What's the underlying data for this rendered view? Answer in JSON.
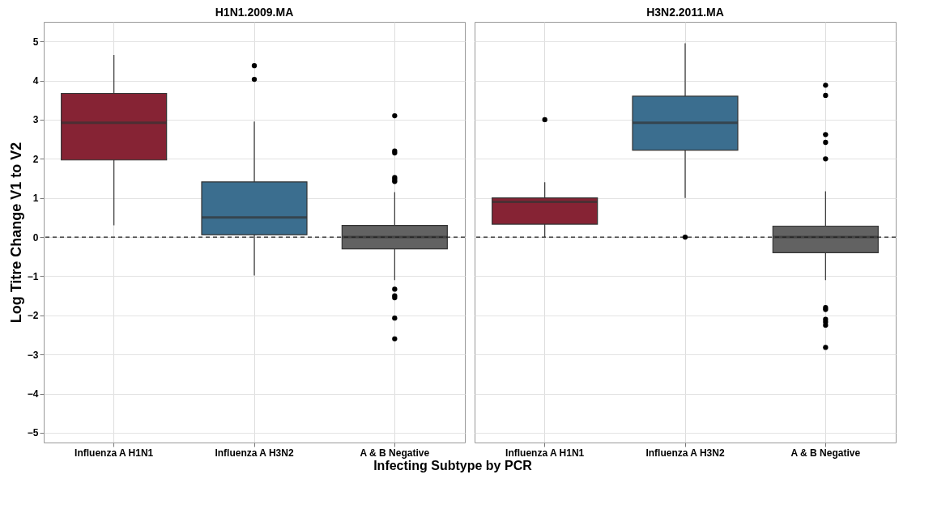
{
  "chart_data": [
    {
      "type": "box",
      "title": "H1N1.2009.MA",
      "xlabel": "Infecting Subtype by PCR",
      "ylabel": "Log Titre Change V1 to V2",
      "categories": [
        "Influenza A H1N1",
        "Influenza A H3N2",
        "A & B Negative"
      ],
      "colors": [
        "#862334",
        "#3b6e8f",
        "#626262"
      ],
      "boxes": [
        {
          "low": 0.3,
          "q1": 1.97,
          "median": 2.92,
          "q3": 3.67,
          "high": 4.65
        },
        {
          "low": -0.98,
          "q1": 0.06,
          "median": 0.5,
          "q3": 1.41,
          "high": 2.95,
          "outliers": [
            4.38,
            4.03
          ]
        },
        {
          "low": -1.1,
          "q1": -0.3,
          "median": 0,
          "q3": 0.3,
          "high": 1.15,
          "outliers": [
            3.1,
            2.2,
            2.15,
            1.52,
            1.47,
            1.42,
            -1.33,
            -1.5,
            -1.55,
            -2.07,
            -2.6
          ]
        }
      ],
      "ylim": [
        -5.25,
        5.5
      ],
      "yticks": [
        -5,
        -4,
        -3,
        -2,
        -1,
        0,
        1,
        2,
        3,
        4,
        5
      ],
      "grid": true,
      "ref_lines": [
        {
          "axis": "y",
          "value": 0,
          "line_style": "dashed"
        }
      ]
    },
    {
      "type": "box",
      "title": "H3N2.2011.MA",
      "categories": [
        "Influenza A H1N1",
        "Influenza A H3N2",
        "A & B Negative"
      ],
      "colors": [
        "#862334",
        "#3b6e8f",
        "#626262"
      ],
      "boxes": [
        {
          "low": 0,
          "q1": 0.33,
          "median": 0.9,
          "q3": 1.0,
          "high": 1.4,
          "outliers": [
            3.0
          ]
        },
        {
          "low": 1.0,
          "q1": 2.22,
          "median": 2.92,
          "q3": 3.6,
          "high": 4.95,
          "outliers": [
            0
          ]
        },
        {
          "low": -1.1,
          "q1": -0.4,
          "median": 0,
          "q3": 0.28,
          "high": 1.17,
          "outliers": [
            3.88,
            3.62,
            2.62,
            2.42,
            2.0,
            -1.8,
            -1.85,
            -2.1,
            -2.17,
            -2.25,
            -2.82
          ]
        }
      ],
      "ylim": [
        -5.25,
        5.5
      ],
      "yticks": [
        -5,
        -4,
        -3,
        -2,
        -1,
        0,
        1,
        2,
        3,
        4,
        5
      ],
      "grid": true,
      "tick_labels": "x",
      "ref_lines": [
        {
          "axis": "y",
          "value": 0,
          "line_style": "dashed"
        }
      ]
    }
  ]
}
